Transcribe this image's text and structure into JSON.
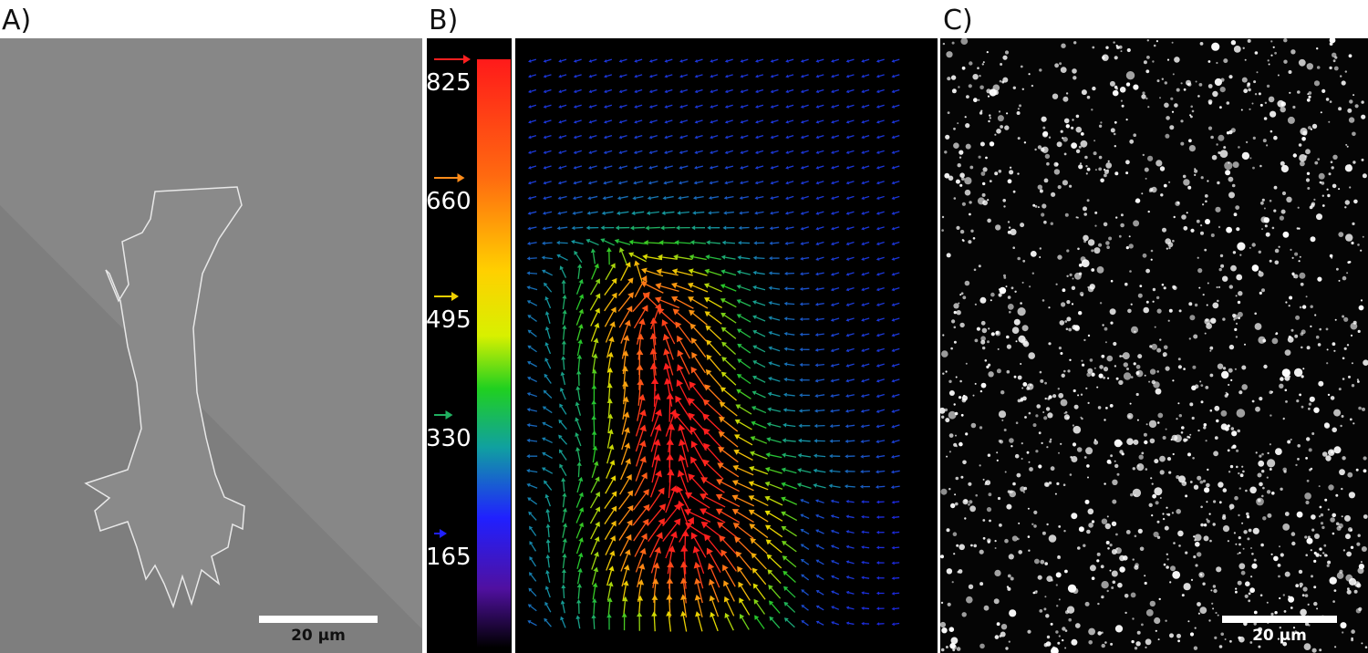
{
  "panels": [
    {
      "label": "A)",
      "scale_bar": "20 µm"
    },
    {
      "label": "B)",
      "colorbar": {
        "ticks": [
          {
            "value": 825,
            "color": "#ff2020"
          },
          {
            "value": 660,
            "color": "#ff8c1a"
          },
          {
            "value": 495,
            "color": "#f0d000"
          },
          {
            "value": 330,
            "color": "#20b060"
          },
          {
            "value": 165,
            "color": "#2020ff"
          }
        ]
      }
    },
    {
      "label": "C)",
      "scale_bar": "20 µm"
    }
  ]
}
